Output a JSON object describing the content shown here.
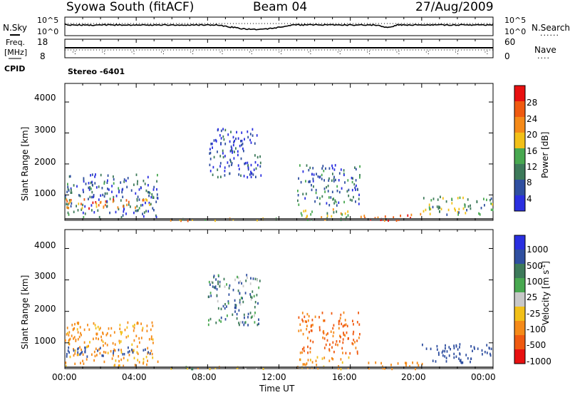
{
  "header": {
    "station": "Syowa South (fitACF)",
    "beam": "Beam 04",
    "date": "27/Aug/2009"
  },
  "nsky_panel": {
    "left_label": "N.Sky",
    "left_ticks": [
      "10^5",
      "10^0"
    ],
    "right_ticks": [
      "10^5",
      "10^0"
    ],
    "right_label": "N.Search",
    "right_legend_marker": "......"
  },
  "freq_panel": {
    "left_label_1": "Freq.",
    "left_label_2": "[MHz]",
    "left_ticks": [
      "18",
      "8"
    ],
    "right_ticks": [
      "60",
      "0"
    ],
    "right_label": "Nave",
    "right_legend_marker": "...."
  },
  "cpid": {
    "label": "CPID",
    "value": "Stereo -6401"
  },
  "colors": {
    "power_scale": [
      "#2a2fe0",
      "#2f4fa0",
      "#3d7a5a",
      "#48a850",
      "#f2c018",
      "#f58a18",
      "#f05a10",
      "#e81010"
    ],
    "velocity_scale": [
      "#2a2fe0",
      "#2f4fa0",
      "#3d7a5a",
      "#48a850",
      "#c8c8c8",
      "#f2c018",
      "#f58a18",
      "#f05a10",
      "#e81010"
    ]
  },
  "chart_data": [
    {
      "type": "heatmap",
      "panel": "power",
      "ylabel": "Slant Range [km]",
      "xlabel": "",
      "x_ticks": [
        "00:00",
        "04:00",
        "08:00",
        "12:00",
        "16:00",
        "20:00",
        "00:00"
      ],
      "y_ticks": [
        "1000",
        "2000",
        "3000",
        "4000"
      ],
      "ylim": [
        180,
        4600
      ],
      "xlim_hours": [
        0,
        24
      ],
      "colorbar_label": "Power [dB]",
      "colorbar_ticks": [
        "4",
        "8",
        "12",
        "16",
        "20",
        "24",
        "28"
      ],
      "colorbar_range": [
        0,
        30
      ],
      "regions": [
        {
          "t": [
            0.0,
            5.2
          ],
          "r": [
            300,
            1700
          ],
          "v": 6
        },
        {
          "t": [
            0.0,
            4.8
          ],
          "r": [
            600,
            900
          ],
          "v": 22
        },
        {
          "t": [
            8.0,
            11.0
          ],
          "r": [
            1600,
            3200
          ],
          "v": 5
        },
        {
          "t": [
            5.5,
            12.5
          ],
          "r": [
            200,
            280
          ],
          "v": 18
        },
        {
          "t": [
            13.0,
            16.5
          ],
          "r": [
            700,
            2000
          ],
          "v": 7
        },
        {
          "t": [
            16.5,
            20.0
          ],
          "r": [
            200,
            420
          ],
          "v": 26
        },
        {
          "t": [
            20.0,
            24.0
          ],
          "r": [
            400,
            1000
          ],
          "v": 12
        },
        {
          "t": [
            13.0,
            16.0
          ],
          "r": [
            200,
            600
          ],
          "v": 14
        }
      ]
    },
    {
      "type": "heatmap",
      "panel": "velocity",
      "ylabel": "Slant Range [km]",
      "xlabel": "Time UT",
      "x_ticks": [
        "00:00",
        "04:00",
        "08:00",
        "12:00",
        "16:00",
        "20:00",
        "00:00"
      ],
      "y_ticks": [
        "1000",
        "2000",
        "3000",
        "4000"
      ],
      "ylim": [
        180,
        4600
      ],
      "xlim_hours": [
        0,
        24
      ],
      "colorbar_label": "Velocity [m s^-1]",
      "colorbar_ticks": [
        "1000",
        "500",
        "100",
        "25",
        "-25",
        "-100",
        "-500",
        "-1000"
      ],
      "colorbar_range": [
        -1000,
        1000
      ],
      "regions": [
        {
          "t": [
            0.0,
            5.2
          ],
          "r": [
            300,
            1700
          ],
          "v": -150
        },
        {
          "t": [
            0.0,
            4.8
          ],
          "r": [
            600,
            900
          ],
          "v": 300
        },
        {
          "t": [
            8.0,
            11.0
          ],
          "r": [
            1600,
            3200
          ],
          "v": 80
        },
        {
          "t": [
            5.5,
            12.5
          ],
          "r": [
            200,
            280
          ],
          "v": -60
        },
        {
          "t": [
            13.0,
            16.5
          ],
          "r": [
            700,
            2000
          ],
          "v": -600
        },
        {
          "t": [
            16.5,
            20.0
          ],
          "r": [
            200,
            420
          ],
          "v": -300
        },
        {
          "t": [
            20.0,
            24.0
          ],
          "r": [
            400,
            1000
          ],
          "v": 200
        },
        {
          "t": [
            13.0,
            16.0
          ],
          "r": [
            200,
            600
          ],
          "v": -150
        }
      ]
    }
  ]
}
